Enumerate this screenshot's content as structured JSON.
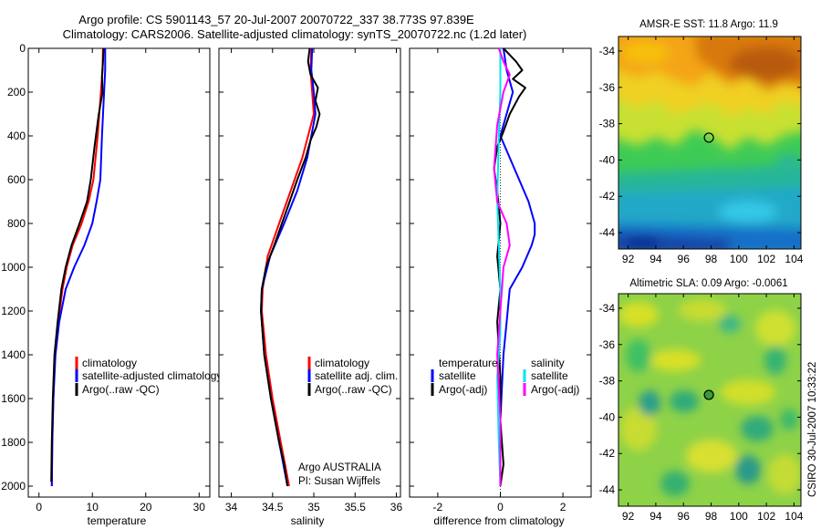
{
  "figure": {
    "title_line1": "Argo profile: CS 5901143_57 20-Jul-2007 20070722_337 38.773S 97.839E",
    "title_line2": "Climatology: CARS2006. Satellite-adjusted climatology: synTS_20070722.nc (1.2d later)",
    "side_label": "CSIRO 30-Jul-2007 10:33:22",
    "colors": {
      "climatology": "#ff0000",
      "satellite": "#0000ff",
      "argo": "#000000",
      "magenta": "#ff00ff",
      "cyan": "#00e5ee"
    }
  },
  "chart_data": [
    {
      "id": "temperature",
      "type": "line",
      "xlabel": "temperature",
      "ylabel": "",
      "xlim": [
        -2,
        32
      ],
      "ylim": [
        2050,
        0
      ],
      "xticks": [
        0,
        10,
        20,
        30
      ],
      "yticks": [
        0,
        200,
        400,
        600,
        800,
        1000,
        1200,
        1400,
        1600,
        1800,
        2000
      ],
      "legend": [
        "climatology",
        "satellite-adjusted climatology",
        "Argo(..raw -QC)"
      ],
      "series": [
        {
          "name": "climatology",
          "color": "#ff0000",
          "x": [
            12.0,
            11.9,
            11.6,
            11.0,
            10.2,
            9.3,
            8.0,
            6.3,
            5.2,
            4.4,
            3.6,
            3.0,
            2.7,
            2.5,
            2.4
          ],
          "y": [
            0,
            100,
            200,
            400,
            600,
            700,
            800,
            900,
            1000,
            1100,
            1250,
            1400,
            1600,
            1800,
            2000
          ]
        },
        {
          "name": "satellite-adjusted climatology",
          "color": "#0000ff",
          "x": [
            12.4,
            12.4,
            12.2,
            11.8,
            11.5,
            10.8,
            10.0,
            8.5,
            6.6,
            5.0,
            3.8,
            3.1,
            2.7,
            2.5,
            2.4
          ],
          "y": [
            0,
            100,
            200,
            400,
            600,
            700,
            800,
            900,
            1000,
            1100,
            1250,
            1400,
            1600,
            1800,
            2000
          ]
        },
        {
          "name": "Argo(..raw -QC)",
          "color": "#000000",
          "x": [
            12.1,
            12.0,
            11.8,
            11.9,
            11.2,
            10.4,
            9.7,
            9.0,
            7.6,
            6.1,
            5.0,
            4.2,
            3.5,
            2.9,
            2.6,
            2.4,
            2.3
          ],
          "y": [
            0,
            60,
            130,
            200,
            300,
            450,
            600,
            700,
            800,
            900,
            1000,
            1100,
            1250,
            1400,
            1600,
            1800,
            1980
          ]
        }
      ]
    },
    {
      "id": "salinity",
      "type": "line",
      "xlabel": "salinity",
      "ylabel": "",
      "xlim": [
        33.85,
        36.05
      ],
      "ylim": [
        2050,
        0
      ],
      "xticks": [
        34,
        34.5,
        35,
        35.5,
        36
      ],
      "yticks": [
        0,
        200,
        400,
        600,
        800,
        1000,
        1200,
        1400,
        1600,
        1800,
        2000
      ],
      "legend": [
        "climatology",
        "satellite adj. clim.",
        "Argo(..raw -QC)"
      ],
      "annotation": [
        "Argo AUSTRALIA",
        "PI: Susan Wijffels"
      ],
      "series": [
        {
          "name": "climatology",
          "color": "#ff0000",
          "x": [
            34.97,
            34.96,
            34.98,
            35.0,
            34.86,
            34.72,
            34.58,
            34.44,
            34.38,
            34.37,
            34.42,
            34.5,
            34.6,
            34.65,
            34.7
          ],
          "y": [
            0,
            100,
            200,
            300,
            500,
            650,
            800,
            950,
            1100,
            1200,
            1400,
            1600,
            1800,
            1900,
            2000
          ]
        },
        {
          "name": "satellite adj. clim.",
          "color": "#0000ff",
          "x": [
            34.98,
            34.97,
            35.0,
            35.02,
            34.92,
            34.8,
            34.64,
            34.47,
            34.37,
            34.36,
            34.4,
            34.48,
            34.58,
            34.63,
            34.68
          ],
          "y": [
            0,
            100,
            200,
            300,
            500,
            650,
            800,
            950,
            1100,
            1200,
            1400,
            1600,
            1800,
            1900,
            2000
          ]
        },
        {
          "name": "Argo(..raw -QC)",
          "color": "#000000",
          "x": [
            34.95,
            34.93,
            34.96,
            35.05,
            35.02,
            35.07,
            35.03,
            34.96,
            34.9,
            34.8,
            34.66,
            34.52,
            34.42,
            34.37,
            34.36,
            34.4,
            34.48,
            34.58,
            34.64,
            34.68
          ],
          "y": [
            0,
            60,
            120,
            180,
            240,
            300,
            360,
            420,
            500,
            600,
            750,
            900,
            1000,
            1100,
            1200,
            1400,
            1600,
            1800,
            1900,
            2000
          ]
        }
      ]
    },
    {
      "id": "difference",
      "type": "line",
      "xlabel": "difference from climatology",
      "ylabel": "",
      "xlim": [
        -2.9,
        2.9
      ],
      "ylim": [
        2050,
        0
      ],
      "xticks": [
        -2,
        0,
        2
      ],
      "yticks": [
        0,
        200,
        400,
        600,
        800,
        1000,
        1200,
        1400,
        1600,
        1800,
        2000
      ],
      "legend_left_title": "temperature",
      "legend_right_title": "salinity",
      "legend": [
        "satellite",
        "Argo(-adj)",
        "satellite",
        "Argo(-adj)"
      ],
      "series": [
        {
          "name": "temperature satellite",
          "color": "#0000ff",
          "x": [
            0.1,
            0.2,
            0.4,
            0.0,
            0.3,
            0.6,
            0.9,
            1.1,
            1.1,
            1.0,
            0.7,
            0.3,
            0.2,
            0.1,
            0.0,
            0.0
          ],
          "y": [
            0,
            100,
            200,
            400,
            500,
            600,
            700,
            800,
            850,
            900,
            1000,
            1100,
            1250,
            1400,
            1700,
            2000
          ]
        },
        {
          "name": "temperature Argo(-adj)",
          "color": "#000000",
          "x": [
            0.1,
            0.5,
            0.7,
            0.4,
            0.8,
            0.6,
            0.3,
            0.1,
            -0.1,
            -0.2,
            -0.1,
            0.0,
            -0.1,
            0.0,
            -0.1,
            0.0,
            0.0,
            0.1,
            0.0
          ],
          "y": [
            0,
            60,
            100,
            140,
            180,
            220,
            300,
            380,
            450,
            550,
            650,
            800,
            950,
            1100,
            1250,
            1500,
            1700,
            1900,
            2000
          ]
        },
        {
          "name": "salinity satellite",
          "color": "#00e5ee",
          "x": [
            0.0,
            0.0,
            -0.05,
            -0.1,
            -0.05,
            0.0,
            0.0,
            -0.1,
            -0.05,
            0.0
          ],
          "y": [
            0,
            200,
            400,
            700,
            900,
            1100,
            1300,
            1500,
            1800,
            2000
          ]
        },
        {
          "name": "salinity Argo(-adj)",
          "color": "#ff00ff",
          "x": [
            -0.05,
            0.1,
            0.3,
            0.1,
            -0.1,
            -0.2,
            -0.1,
            0.2,
            0.3,
            0.1,
            0.0,
            -0.1,
            0.0,
            0.0
          ],
          "y": [
            0,
            60,
            120,
            200,
            350,
            550,
            700,
            800,
            900,
            1000,
            1200,
            1400,
            1700,
            2000
          ]
        }
      ]
    },
    {
      "id": "sst-map",
      "type": "heatmap",
      "title": "AMSR-E SST: 11.8 Argo: 11.9",
      "xlim": [
        91.3,
        104.5
      ],
      "ylim": [
        -44.9,
        -33.2
      ],
      "xticks": [
        92,
        94,
        96,
        98,
        100,
        102,
        104
      ],
      "yticks": [
        -34,
        -36,
        -38,
        -40,
        -42,
        -44
      ],
      "marker": {
        "lon": 97.84,
        "lat": -38.77
      }
    },
    {
      "id": "sla-map",
      "type": "heatmap",
      "title": "Altimetric SLA: 0.09 Argo: -0.0061",
      "xlim": [
        91.3,
        104.5
      ],
      "ylim": [
        -44.9,
        -33.2
      ],
      "xticks": [
        92,
        94,
        96,
        98,
        100,
        102,
        104
      ],
      "yticks": [
        -34,
        -36,
        -38,
        -40,
        -42,
        -44
      ],
      "marker": {
        "lon": 97.84,
        "lat": -38.77
      }
    }
  ]
}
